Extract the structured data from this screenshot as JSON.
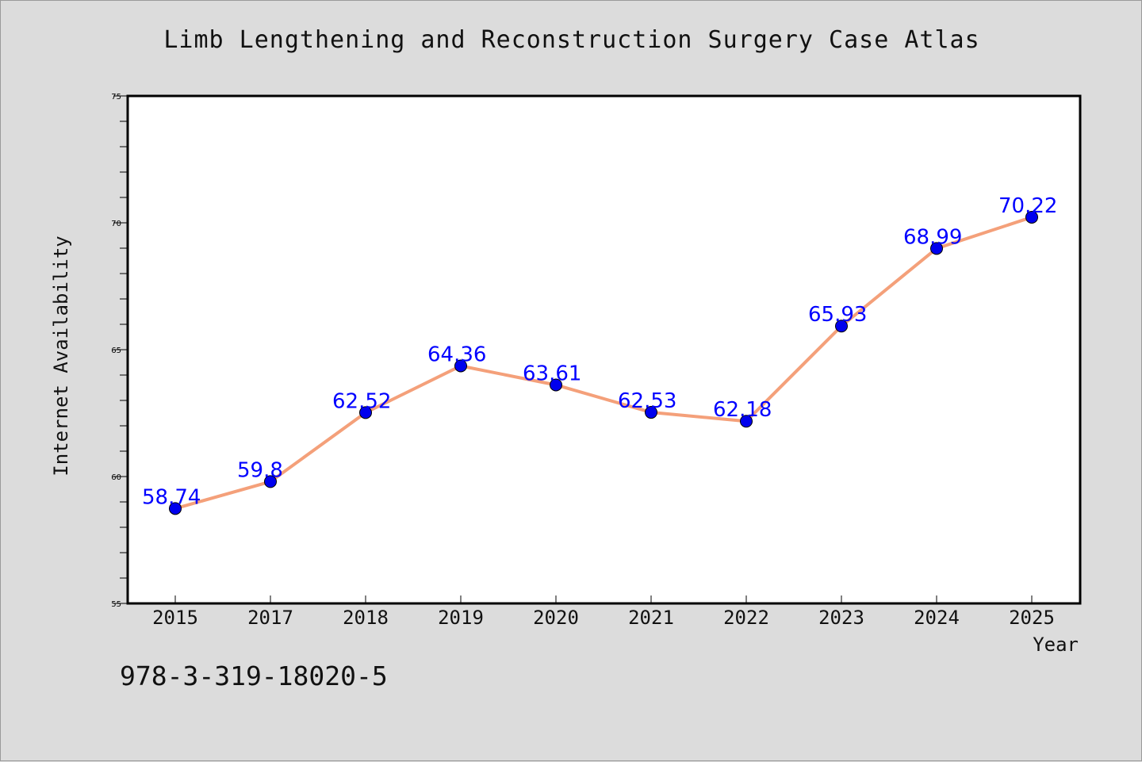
{
  "title": "Limb Lengthening and Reconstruction Surgery Case Atlas",
  "isbn": "978-3-319-18020-5",
  "colors": {
    "background": "#dcdcdc",
    "plot_background": "#ffffff",
    "line": "#f4a07a",
    "marker": "#0000ee",
    "labels": "#0000ff"
  },
  "chart_data": {
    "type": "line",
    "title": "Limb Lengthening and Reconstruction Surgery Case Atlas",
    "xlabel": "Year",
    "ylabel": "Internet Availability",
    "categories": [
      "2015",
      "2017",
      "2018",
      "2019",
      "2020",
      "2021",
      "2022",
      "2023",
      "2024",
      "2025"
    ],
    "series": [
      {
        "values": [
          58.74,
          59.8,
          62.52,
          64.36,
          63.61,
          62.53,
          62.18,
          65.93,
          68.99,
          70.22
        ],
        "data_labels": [
          "58.74",
          "59.8",
          "62.52",
          "64.36",
          "63.61",
          "62.53",
          "62.18",
          "65.93",
          "68.99",
          "70.22"
        ]
      }
    ],
    "ylim": [
      55,
      75
    ],
    "yticks": [
      55,
      60,
      65,
      70,
      75
    ],
    "y_minor_step": 1,
    "grid": false,
    "legend": "none"
  }
}
